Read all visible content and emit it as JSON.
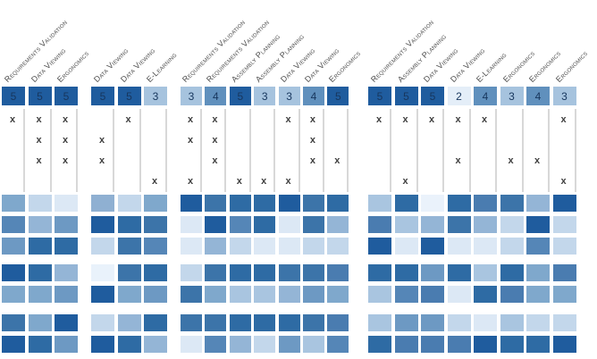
{
  "palette": {
    "score_colors": {
      "2": "#E4EEF8",
      "3": "#A6C3DE",
      "4": "#6090BD",
      "5": "#1F5C9E"
    },
    "score_text_color": "#17365D",
    "x_mark_color": "#404040",
    "separator_line_color": "#D8D8D8",
    "label_color": "#4D4D4D"
  },
  "x_mark_glyph": "x",
  "chart_data": {
    "type": "heatmap",
    "description": "Grouped comparison matrix: 4 groups of application-area columns with overall scores (2-5, blue scale), a 4-row x-mark criteria matrix with vertical separators, and three bands of heatmap score rows (3+2+2).",
    "criteria_row_count": 4,
    "heatmap_row_bands": [
      3,
      2,
      2
    ],
    "groups": [
      {
        "columns": [
          "Requirements Validation",
          "Data Viewing",
          "Ergonomics"
        ],
        "scores": [
          5,
          5,
          5
        ],
        "x_marks": [
          [
            1,
            1,
            1
          ],
          [
            0,
            1,
            1
          ],
          [
            0,
            1,
            1
          ],
          [
            0,
            0,
            0
          ]
        ],
        "heatmap_rows": [
          [
            "#7FA8CC",
            "#C3D7EB",
            "#DCE8F5"
          ],
          [
            "#5586B7",
            "#94B5D6",
            "#6D99C3"
          ],
          [
            "#6D99C3",
            "#2E6BA4",
            "#2E6BA4"
          ],
          [
            "#1F5C9E",
            "#2E6BA4",
            "#94B5D6"
          ],
          [
            "#7FA8CC",
            "#7FA8CC",
            "#6D99C3"
          ],
          [
            "#3C74A9",
            "#7FA8CC",
            "#1F5C9E"
          ],
          [
            "#1F5C9E",
            "#2E6BA4",
            "#6D99C3"
          ]
        ]
      },
      {
        "columns": [
          "Data Viewing",
          "Data Viewing",
          "E-Learning"
        ],
        "scores": [
          5,
          5,
          3
        ],
        "x_marks": [
          [
            0,
            1,
            0
          ],
          [
            1,
            0,
            0
          ],
          [
            1,
            0,
            0
          ],
          [
            0,
            0,
            1
          ]
        ],
        "heatmap_rows": [
          [
            "#8FB0D2",
            "#C3D7EB",
            "#7FA8CC"
          ],
          [
            "#1F5C9E",
            "#2E6BA4",
            "#3C74A9"
          ],
          [
            "#C3D7EB",
            "#3C74A9",
            "#5586B7"
          ],
          [
            "#E9F2FB",
            "#3C74A9",
            "#2E6BA4"
          ],
          [
            "#1F5C9E",
            "#7FA8CC",
            "#6D99C3"
          ],
          [
            "#C3D7EB",
            "#94B5D6",
            "#2E6BA4"
          ],
          [
            "#1F5C9E",
            "#2E6BA4",
            "#94B5D6"
          ]
        ]
      },
      {
        "columns": [
          "Requirements Validation",
          "Requirements Validation",
          "Assembly Planning",
          "Assembly Planning",
          "Data Viewing",
          "Data Viewing",
          "Ergonomics"
        ],
        "scores": [
          3,
          4,
          5,
          3,
          3,
          4,
          5
        ],
        "x_marks": [
          [
            1,
            1,
            0,
            0,
            1,
            1,
            0
          ],
          [
            1,
            1,
            0,
            0,
            0,
            1,
            0
          ],
          [
            0,
            1,
            0,
            0,
            0,
            1,
            1
          ],
          [
            1,
            0,
            1,
            1,
            1,
            0,
            0
          ]
        ],
        "heatmap_rows": [
          [
            "#1F5C9E",
            "#3C74A9",
            "#2E6BA4",
            "#2E6BA4",
            "#1F5C9E",
            "#3C74A9",
            "#2E6BA4"
          ],
          [
            "#DCE8F5",
            "#1F5C9E",
            "#5586B7",
            "#2E6BA4",
            "#DCE8F5",
            "#3C74A9",
            "#94B5D6"
          ],
          [
            "#DCE8F5",
            "#94B5D6",
            "#C3D7EB",
            "#DCE8F5",
            "#DCE8F5",
            "#C3D7EB",
            "#C3D7EB"
          ],
          [
            "#C3D7EB",
            "#3C74A9",
            "#2E6BA4",
            "#2E6BA4",
            "#3C74A9",
            "#3C74A9",
            "#4A7CB0"
          ],
          [
            "#3C74A9",
            "#7FA8CC",
            "#A9C5E0",
            "#A9C5E0",
            "#94B5D6",
            "#6D99C3",
            "#7FA8CC"
          ],
          [
            "#3C74A9",
            "#3C74A9",
            "#2E6BA4",
            "#2E6BA4",
            "#2E6BA4",
            "#3C74A9",
            "#4A7CB0"
          ],
          [
            "#DCE8F5",
            "#5586B7",
            "#94B5D6",
            "#C3D7EB",
            "#6D99C3",
            "#A9C5E0",
            "#5586B7"
          ]
        ]
      },
      {
        "columns": [
          "Requirements Validation",
          "Assembly Planning",
          "Data Viewing",
          "Data Viewing",
          "E-Learning",
          "Ergonomics",
          "Ergonomics",
          "Ergonomics"
        ],
        "scores": [
          5,
          5,
          5,
          2,
          4,
          3,
          4,
          3
        ],
        "x_marks": [
          [
            1,
            1,
            1,
            1,
            1,
            0,
            0,
            1
          ],
          [
            0,
            0,
            0,
            0,
            0,
            0,
            0,
            0
          ],
          [
            0,
            0,
            0,
            1,
            0,
            1,
            1,
            0
          ],
          [
            0,
            1,
            0,
            0,
            0,
            0,
            0,
            1
          ]
        ],
        "heatmap_rows": [
          [
            "#A9C5E0",
            "#2E6BA4",
            "#EAF2FB",
            "#2E6BA4",
            "#4A7CB0",
            "#3C74A9",
            "#94B5D6",
            "#1F5C9E"
          ],
          [
            "#4A7CB0",
            "#A9C5E0",
            "#94B5D6",
            "#3C74A9",
            "#94B5D6",
            "#C3D7EB",
            "#1F5C9E",
            "#C3D7EB"
          ],
          [
            "#1F5C9E",
            "#DCE8F5",
            "#1F5C9E",
            "#DCE8F5",
            "#DCE8F5",
            "#C3D7EB",
            "#5586B7",
            "#C3D7EB"
          ],
          [
            "#2E6BA4",
            "#2E6BA4",
            "#6D99C3",
            "#2E6BA4",
            "#A9C5E0",
            "#2E6BA4",
            "#7FA8CC",
            "#4A7CB0"
          ],
          [
            "#A9C5E0",
            "#5586B7",
            "#4A7CB0",
            "#DCE8F5",
            "#2E6BA4",
            "#4A7CB0",
            "#7FA8CC",
            "#7FA8CC"
          ],
          [
            "#A9C5E0",
            "#6D99C3",
            "#6D99C3",
            "#C3D7EB",
            "#DCE8F5",
            "#A9C5E0",
            "#C3D7EB",
            "#C3D7EB"
          ],
          [
            "#2E6BA4",
            "#4A7CB0",
            "#4A7CB0",
            "#4A7CB0",
            "#1F5C9E",
            "#2E6BA4",
            "#2E6BA4",
            "#1F5C9E"
          ]
        ]
      }
    ]
  }
}
